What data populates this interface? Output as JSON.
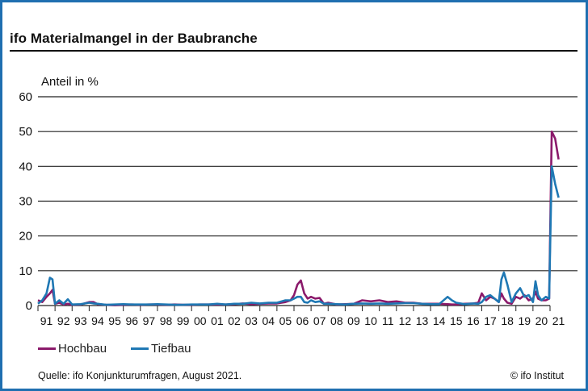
{
  "title": "ifo Materialmangel in der Baubranche",
  "colors": {
    "frame": "#1f6fb0",
    "hochbau": "#8b1a6b",
    "tiefbau": "#1f78b4",
    "grid": "#222222"
  },
  "legend": {
    "hochbau": "Hochbau",
    "tiefbau": "Tiefbau"
  },
  "footer": {
    "source": "Quelle: ifo Konjunkturumfragen, August 2021.",
    "copyright": "© ifo Institut"
  },
  "chart_data": {
    "type": "line",
    "title": "ifo Materialmangel in der Baubranche",
    "ylabel": "Anteil in %",
    "xlabel": "",
    "ylim": [
      0,
      60
    ],
    "yticks": [
      0,
      10,
      20,
      30,
      40,
      50,
      60
    ],
    "xticks": [
      "91",
      "92",
      "93",
      "94",
      "95",
      "96",
      "97",
      "98",
      "99",
      "00",
      "01",
      "02",
      "03",
      "04",
      "05",
      "06",
      "07",
      "08",
      "09",
      "10",
      "11",
      "12",
      "13",
      "14",
      "15",
      "16",
      "17",
      "18",
      "19",
      "20",
      "21"
    ],
    "grid": true,
    "legend_position": "bottom-left",
    "x": [
      1991.0,
      1991.25,
      1991.5,
      1991.7,
      1991.85,
      1992.0,
      1992.25,
      1992.5,
      1992.75,
      1993.0,
      1993.5,
      1994.0,
      1994.25,
      1994.5,
      1995.0,
      1995.5,
      1996.0,
      1996.5,
      1997.0,
      1997.5,
      1998.0,
      1998.5,
      1999.0,
      1999.5,
      2000.0,
      2000.5,
      2001.0,
      2001.5,
      2002.0,
      2002.5,
      2003.0,
      2003.5,
      2004.0,
      2004.5,
      2005.0,
      2005.5,
      2005.8,
      2006.0,
      2006.2,
      2006.4,
      2006.6,
      2006.8,
      2007.0,
      2007.25,
      2007.5,
      2007.75,
      2008.0,
      2008.5,
      2009.0,
      2009.5,
      2010.0,
      2010.5,
      2011.0,
      2011.5,
      2012.0,
      2012.5,
      2013.0,
      2013.5,
      2014.0,
      2014.5,
      2015.0,
      2015.25,
      2015.5,
      2016.0,
      2016.5,
      2016.8,
      2017.0,
      2017.25,
      2017.5,
      2017.75,
      2018.0,
      2018.15,
      2018.3,
      2018.5,
      2018.75,
      2019.0,
      2019.25,
      2019.5,
      2019.75,
      2020.0,
      2020.15,
      2020.3,
      2020.5,
      2020.75,
      2020.95,
      2021.1,
      2021.3,
      2021.5
    ],
    "series": [
      {
        "name": "Hochbau",
        "values": [
          1.5,
          1.0,
          2.5,
          3.5,
          4.5,
          0.5,
          0.8,
          0.3,
          0.5,
          0.2,
          0.3,
          1.0,
          1.0,
          0.4,
          0.2,
          0.1,
          0.2,
          0.3,
          0.2,
          0.3,
          0.3,
          0.2,
          0.3,
          0.2,
          0.2,
          0.3,
          0.3,
          0.3,
          0.3,
          0.4,
          0.6,
          0.4,
          0.5,
          0.6,
          0.6,
          1.0,
          1.5,
          3.0,
          6.0,
          7.2,
          3.5,
          2.0,
          2.5,
          2.0,
          2.2,
          0.5,
          0.8,
          0.3,
          0.4,
          0.5,
          1.5,
          1.2,
          1.5,
          1.0,
          1.2,
          0.8,
          0.8,
          0.5,
          0.5,
          0.5,
          0.4,
          0.3,
          0.3,
          0.5,
          0.6,
          0.8,
          3.5,
          1.5,
          2.5,
          2.0,
          1.0,
          3.5,
          2.0,
          0.8,
          0.5,
          2.5,
          2.0,
          3.0,
          1.5,
          2.0,
          4.0,
          2.0,
          1.5,
          1.5,
          2.0,
          50.0,
          48.0,
          42.0
        ]
      },
      {
        "name": "Tiefbau",
        "values": [
          0.5,
          1.5,
          3.5,
          8.0,
          7.5,
          0.5,
          1.5,
          0.5,
          1.8,
          0.3,
          0.4,
          0.8,
          0.6,
          0.5,
          0.2,
          0.3,
          0.4,
          0.3,
          0.3,
          0.3,
          0.4,
          0.3,
          0.2,
          0.2,
          0.3,
          0.3,
          0.3,
          0.5,
          0.3,
          0.5,
          0.5,
          0.8,
          0.6,
          0.8,
          0.8,
          1.5,
          1.5,
          2.0,
          2.5,
          2.5,
          1.0,
          0.8,
          1.5,
          1.0,
          1.2,
          0.5,
          0.5,
          0.4,
          0.3,
          0.5,
          0.6,
          0.5,
          0.6,
          0.5,
          0.6,
          0.7,
          0.7,
          0.5,
          0.4,
          0.4,
          2.5,
          1.5,
          0.8,
          0.4,
          0.6,
          0.5,
          1.0,
          2.5,
          3.0,
          2.0,
          1.0,
          7.5,
          9.5,
          6.0,
          1.0,
          3.5,
          5.0,
          2.5,
          3.0,
          1.0,
          7.0,
          3.0,
          1.5,
          2.5,
          2.0,
          40.0,
          35.0,
          31.0
        ]
      }
    ]
  }
}
